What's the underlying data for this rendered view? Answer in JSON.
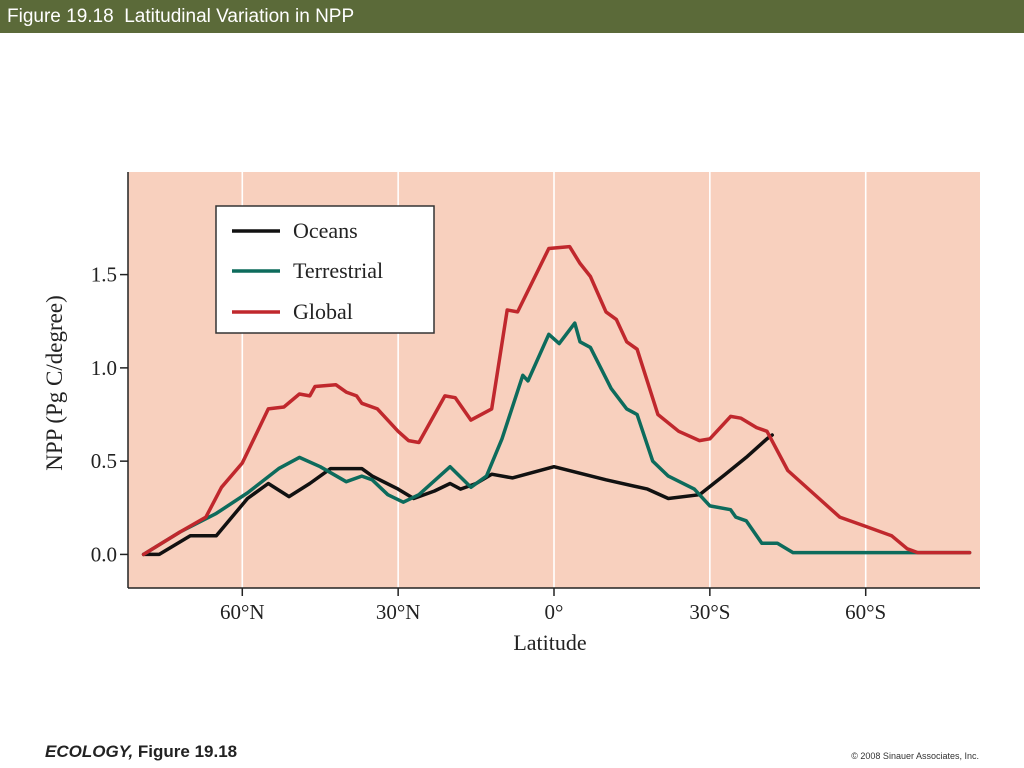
{
  "header": {
    "title": "Figure 19.18  Latitudinal Variation in NPP"
  },
  "footer": {
    "book": "ECOLOGY,",
    "figure": " Figure 19.18",
    "copyright": "© 2008 Sinauer Associates, Inc."
  },
  "colors": {
    "header_bg": "#5b6a39",
    "plot_bg": "#f8d0be",
    "oceans": "#111111",
    "terrestrial": "#0d6b5c",
    "global": "#c0282d"
  },
  "chart_data": {
    "type": "line",
    "title": "",
    "xlabel": "Latitude",
    "ylabel": "NPP (Pg C/degree)",
    "x_ticks": [
      {
        "value": -60,
        "label": "60°N"
      },
      {
        "value": -30,
        "label": "30°N"
      },
      {
        "value": 0,
        "label": "0°"
      },
      {
        "value": 30,
        "label": "30°S"
      },
      {
        "value": 60,
        "label": "60°S"
      }
    ],
    "y_ticks": [
      {
        "value": 0.0,
        "label": "0.0"
      },
      {
        "value": 0.5,
        "label": "0.5"
      },
      {
        "value": 1.0,
        "label": "1.0"
      },
      {
        "value": 1.5,
        "label": "1.5"
      }
    ],
    "xlim": [
      -82,
      82
    ],
    "ylim": [
      -0.18,
      2.05
    ],
    "grid": "vertical",
    "legend_position": "top-left",
    "series": [
      {
        "name": "Oceans",
        "color": "#111111",
        "points": [
          [
            -79,
            0
          ],
          [
            -76,
            0
          ],
          [
            -70,
            0.1
          ],
          [
            -65,
            0.1
          ],
          [
            -59,
            0.3
          ],
          [
            -55,
            0.38
          ],
          [
            -51,
            0.31
          ],
          [
            -47,
            0.38
          ],
          [
            -43,
            0.46
          ],
          [
            -37,
            0.46
          ],
          [
            -35,
            0.42
          ],
          [
            -30,
            0.35
          ],
          [
            -27,
            0.3
          ],
          [
            -23,
            0.34
          ],
          [
            -20,
            0.38
          ],
          [
            -18,
            0.35
          ],
          [
            -15,
            0.38
          ],
          [
            -12,
            0.43
          ],
          [
            -8,
            0.41
          ],
          [
            0,
            0.47
          ],
          [
            10,
            0.4
          ],
          [
            18,
            0.35
          ],
          [
            22,
            0.3
          ],
          [
            28,
            0.32
          ],
          [
            33,
            0.43
          ],
          [
            37,
            0.52
          ],
          [
            41,
            0.62
          ],
          [
            42,
            0.64
          ]
        ]
      },
      {
        "name": "Terrestrial",
        "color": "#0d6b5c",
        "points": [
          [
            -79,
            0
          ],
          [
            -72,
            0.12
          ],
          [
            -65,
            0.22
          ],
          [
            -59,
            0.33
          ],
          [
            -53,
            0.46
          ],
          [
            -49,
            0.52
          ],
          [
            -45,
            0.47
          ],
          [
            -40,
            0.39
          ],
          [
            -37,
            0.42
          ],
          [
            -35,
            0.4
          ],
          [
            -32,
            0.32
          ],
          [
            -29,
            0.28
          ],
          [
            -26,
            0.32
          ],
          [
            -20,
            0.47
          ],
          [
            -16,
            0.36
          ],
          [
            -13,
            0.42
          ],
          [
            -10,
            0.62
          ],
          [
            -6,
            0.96
          ],
          [
            -5,
            0.93
          ],
          [
            -1,
            1.18
          ],
          [
            1,
            1.13
          ],
          [
            4,
            1.24
          ],
          [
            5,
            1.14
          ],
          [
            7,
            1.11
          ],
          [
            11,
            0.89
          ],
          [
            14,
            0.78
          ],
          [
            16,
            0.75
          ],
          [
            19,
            0.5
          ],
          [
            22,
            0.42
          ],
          [
            27,
            0.35
          ],
          [
            30,
            0.26
          ],
          [
            34,
            0.24
          ],
          [
            35,
            0.2
          ],
          [
            37,
            0.18
          ],
          [
            40,
            0.06
          ],
          [
            43,
            0.06
          ],
          [
            46,
            0.01
          ],
          [
            50,
            0.01
          ],
          [
            80,
            0.01
          ]
        ]
      },
      {
        "name": "Global",
        "color": "#c0282d",
        "points": [
          [
            -79,
            0
          ],
          [
            -72,
            0.12
          ],
          [
            -67,
            0.2
          ],
          [
            -64,
            0.36
          ],
          [
            -60,
            0.49
          ],
          [
            -55,
            0.78
          ],
          [
            -52,
            0.79
          ],
          [
            -49,
            0.86
          ],
          [
            -47,
            0.85
          ],
          [
            -46,
            0.9
          ],
          [
            -42,
            0.91
          ],
          [
            -40,
            0.87
          ],
          [
            -38,
            0.85
          ],
          [
            -37,
            0.81
          ],
          [
            -34,
            0.78
          ],
          [
            -30,
            0.66
          ],
          [
            -28,
            0.61
          ],
          [
            -26,
            0.6
          ],
          [
            -21,
            0.85
          ],
          [
            -19,
            0.84
          ],
          [
            -16,
            0.72
          ],
          [
            -12,
            0.78
          ],
          [
            -9,
            1.31
          ],
          [
            -7,
            1.3
          ],
          [
            -1,
            1.64
          ],
          [
            3,
            1.65
          ],
          [
            5,
            1.56
          ],
          [
            7,
            1.49
          ],
          [
            10,
            1.3
          ],
          [
            12,
            1.26
          ],
          [
            14,
            1.14
          ],
          [
            16,
            1.1
          ],
          [
            20,
            0.75
          ],
          [
            24,
            0.66
          ],
          [
            28,
            0.61
          ],
          [
            30,
            0.62
          ],
          [
            34,
            0.74
          ],
          [
            36,
            0.73
          ],
          [
            39,
            0.68
          ],
          [
            41,
            0.66
          ],
          [
            45,
            0.45
          ],
          [
            51,
            0.3
          ],
          [
            55,
            0.2
          ],
          [
            60,
            0.15
          ],
          [
            65,
            0.1
          ],
          [
            68,
            0.03
          ],
          [
            70,
            0.01
          ],
          [
            80,
            0.01
          ]
        ]
      }
    ]
  }
}
